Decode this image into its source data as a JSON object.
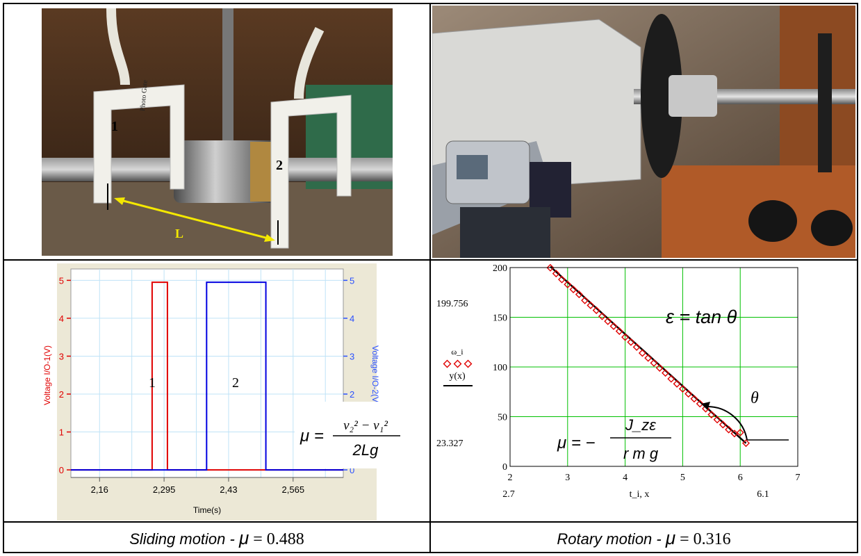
{
  "photos": {
    "left": {
      "sensor1_label": "1",
      "sensor2_label": "2",
      "distance_label": "L",
      "sensor_brand": "Photo Gate"
    },
    "right": {}
  },
  "captions": {
    "sliding": {
      "text": "Sliding motion - ",
      "mu_symbol": "μ",
      "eq": " = ",
      "value": "0.488"
    },
    "rotary": {
      "text": "Rotary motion - ",
      "mu_symbol": "μ",
      "eq": " = ",
      "value": "0.316"
    }
  },
  "formulas": {
    "sliding_mu": {
      "lhs": "μ =",
      "num": "v₂² − v₁²",
      "den": "2Lg"
    },
    "rotary_eps": "ε = tan θ",
    "rotary_mu": {
      "lhs": "μ = −",
      "num": "J_zε",
      "den": "r m g"
    },
    "theta": "θ"
  },
  "chart_data": [
    {
      "type": "line",
      "xlabel": "Time(s)",
      "ylabel_left": "Voltage I/O-1(V)",
      "ylabel_right": "Voltage I/O-2(V)",
      "xlim": [
        2.1,
        2.67
      ],
      "ylim": [
        -0.2,
        5.3
      ],
      "x_ticks": [
        "2,16",
        "2,295",
        "2,43",
        "2,565"
      ],
      "x_tick_values": [
        2.16,
        2.295,
        2.43,
        2.565
      ],
      "y_ticks_left": [
        "0",
        "1",
        "2",
        "3",
        "4",
        "5"
      ],
      "y_ticks_right": [
        "0",
        "1",
        "2",
        "3",
        "4",
        "5"
      ],
      "y_tick_values": [
        0,
        1,
        2,
        3,
        4,
        5
      ],
      "grid": true,
      "series": [
        {
          "name": "1",
          "color": "#e00000",
          "x": [
            2.1,
            2.27,
            2.27,
            2.302,
            2.302,
            2.67
          ],
          "y": [
            0,
            0,
            4.95,
            4.95,
            0,
            0
          ]
        },
        {
          "name": "2",
          "color": "#0000e0",
          "x": [
            2.1,
            2.384,
            2.384,
            2.508,
            2.508,
            2.67
          ],
          "y": [
            0,
            0,
            4.95,
            4.95,
            0,
            0
          ]
        }
      ]
    },
    {
      "type": "scatter",
      "xlabel": "t_i, x",
      "legend": [
        "ω_i",
        "y(x)"
      ],
      "xlim": [
        2,
        7
      ],
      "ylim": [
        0,
        200
      ],
      "x_ticks": [
        "2",
        "3",
        "4",
        "5",
        "6",
        "7"
      ],
      "x_tick_values": [
        2,
        3,
        4,
        5,
        6,
        7
      ],
      "y_ticks": [
        "0",
        "50",
        "100",
        "150",
        "200"
      ],
      "y_tick_values": [
        0,
        50,
        100,
        150,
        200
      ],
      "range_labels": {
        "y_max": "199.756",
        "y_min": "23.327",
        "x_min": "2.7",
        "x_max": "6.1"
      },
      "grid": true,
      "points_color": "#e00000",
      "line_color": "#000000",
      "points": {
        "x": [
          2.7,
          2.8,
          2.9,
          3.0,
          3.1,
          3.2,
          3.3,
          3.4,
          3.5,
          3.6,
          3.7,
          3.8,
          3.9,
          4.0,
          4.1,
          4.2,
          4.3,
          4.4,
          4.5,
          4.6,
          4.7,
          4.8,
          4.9,
          5.0,
          5.1,
          5.2,
          5.3,
          5.4,
          5.5,
          5.6,
          5.7,
          5.8,
          5.9,
          6.0,
          6.1
        ],
        "y": [
          199.8,
          194,
          188,
          183,
          178,
          173,
          167,
          162,
          157,
          151,
          146,
          141,
          136,
          130,
          125,
          120,
          114,
          109,
          104,
          99,
          94,
          88,
          83,
          78,
          73,
          68,
          63,
          58,
          52,
          47,
          42,
          37,
          33,
          34,
          23.3
        ]
      },
      "fit_line": {
        "x": [
          2.7,
          6.1
        ],
        "y": [
          201,
          23.3
        ]
      }
    }
  ]
}
